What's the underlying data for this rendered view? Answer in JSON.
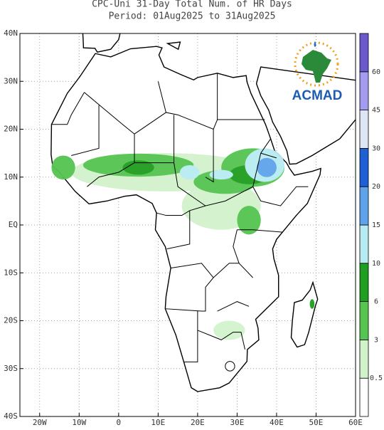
{
  "title": [
    "CPC-Uni 31-Day Total Num. of HR Days",
    "Period: 01Aug2025 to 31Aug2025"
  ],
  "logo": "ACMAD",
  "map": {
    "xlim": [
      -25,
      60
    ],
    "ylim": [
      -40,
      40
    ],
    "xticks": [
      {
        "value": -20,
        "label": "20W"
      },
      {
        "value": -10,
        "label": "10W"
      },
      0,
      {
        "value": 10,
        "label": "10E"
      },
      {
        "value": 20,
        "label": "20E"
      },
      {
        "value": 30,
        "label": "30E"
      },
      {
        "value": 40,
        "label": "40E"
      },
      {
        "value": 50,
        "label": "50E"
      },
      {
        "value": 60,
        "label": "60E"
      }
    ],
    "yticks": [
      {
        "value": 40,
        "label": "40N"
      },
      {
        "value": 30,
        "label": "30N"
      },
      {
        "value": 20,
        "label": "20N"
      },
      {
        "value": 10,
        "label": "10N"
      },
      {
        "value": 0,
        "label": "EQ"
      },
      {
        "value": -10,
        "label": "10S"
      },
      {
        "value": -20,
        "label": "20S"
      },
      {
        "value": -30,
        "label": "30S"
      },
      {
        "value": -40,
        "label": "40S"
      }
    ],
    "grid": true,
    "colorbar": {
      "levels": [
        0.5,
        3,
        6,
        10,
        15,
        20,
        30,
        45,
        60
      ],
      "colors": [
        "#ffffff",
        "#d2f2cc",
        "#55c450",
        "#1f9e1f",
        "#b7ebf2",
        "#5ea3ea",
        "#1f5fd6",
        "#dce6f5",
        "#a49cf0",
        "#6a5acd"
      ]
    }
  }
}
